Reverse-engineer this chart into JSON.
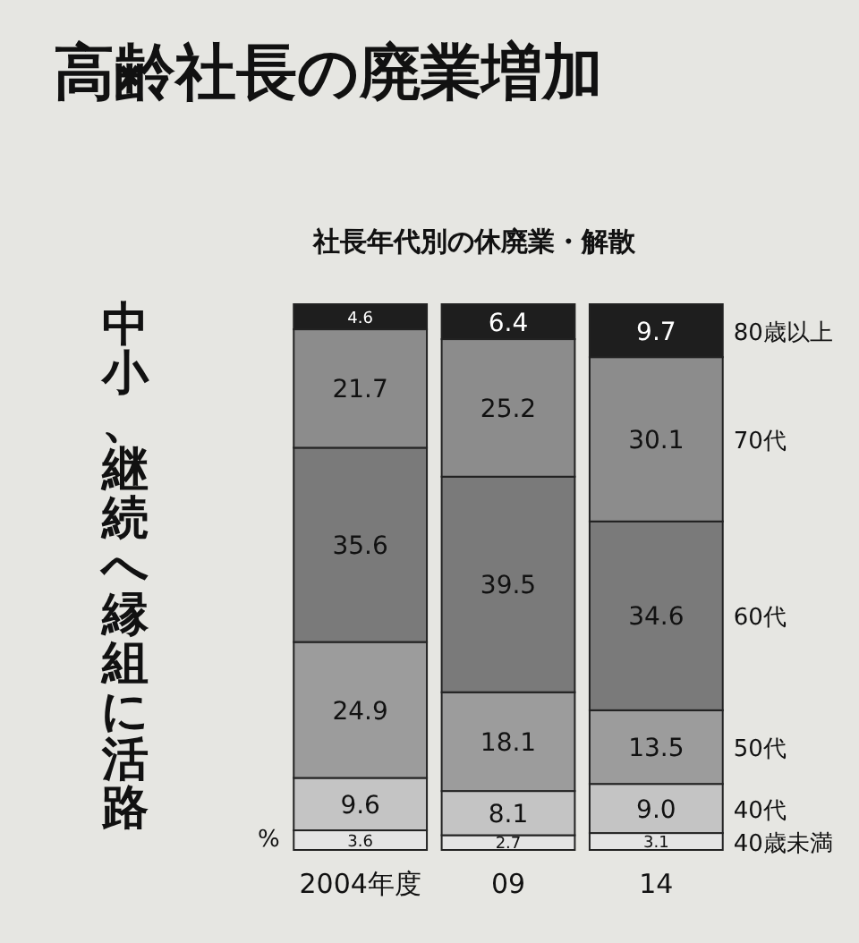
{
  "chart_data": {
    "type": "bar",
    "stacked": true,
    "title": "高齢社長の廃業増加",
    "subtitle": "社長年代別の休廃業・解散",
    "annotations": [
      "中小、継続へ縁組に活路",
      "%"
    ],
    "categories": [
      "2004年度",
      "09",
      "14"
    ],
    "series": [
      {
        "name": "40歳未満",
        "color": "#e4e4e4",
        "values": [
          3.6,
          2.7,
          3.1
        ],
        "value_labels": [
          "3.6",
          "2.7",
          "3.1"
        ]
      },
      {
        "name": "40代",
        "color": "#c4c4c4",
        "values": [
          9.6,
          8.1,
          9.0
        ],
        "value_labels": [
          "9.6",
          "8.1",
          "9.0"
        ]
      },
      {
        "name": "50代",
        "color": "#9c9c9c",
        "values": [
          24.9,
          18.1,
          13.5
        ],
        "value_labels": [
          "24.9",
          "18.1",
          "13.5"
        ]
      },
      {
        "name": "60代",
        "color": "#7a7a7a",
        "values": [
          35.6,
          39.5,
          34.6
        ],
        "value_labels": [
          "35.6",
          "39.5",
          "34.6"
        ]
      },
      {
        "name": "70代",
        "color": "#8c8c8c",
        "values": [
          21.7,
          25.2,
          30.1
        ],
        "value_labels": [
          "21.7",
          "25.2",
          "30.1"
        ]
      },
      {
        "name": "80歳以上",
        "color": "#1e1e1e",
        "values": [
          4.6,
          6.4,
          9.7
        ],
        "value_labels": [
          "4.6",
          "6.4",
          "9.7"
        ]
      }
    ]
  }
}
